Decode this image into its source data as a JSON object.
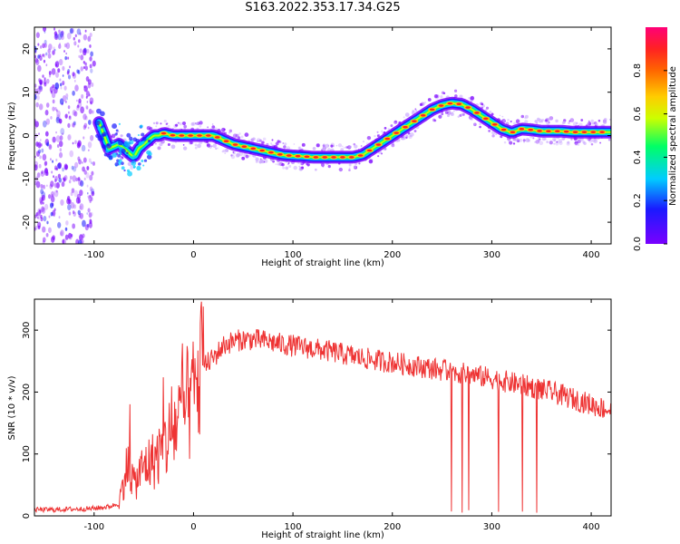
{
  "title": "S163.2022.353.17.34.G25",
  "colors": {
    "snr_line": "#ee3333",
    "background": "#ffffff",
    "axis": "#000000",
    "colormap": [
      "#7a00ff",
      "#1a1aff",
      "#00ccff",
      "#00ff66",
      "#ccff00",
      "#ffcc00",
      "#ff6600",
      "#ff2222",
      "#ff0077"
    ]
  },
  "chart_data": [
    {
      "type": "heatmap",
      "title": "",
      "xlabel": "Height of straight line (km)",
      "ylabel": "Frequency (Hz)",
      "xlim": [
        -160,
        420
      ],
      "ylim": [
        -25,
        25
      ],
      "xticks": [
        -100,
        0,
        100,
        200,
        300,
        400
      ],
      "yticks": [
        -20,
        -10,
        0,
        10,
        20
      ],
      "xtick_labels": [
        "-100",
        "0",
        "100",
        "200",
        "300",
        "400"
      ],
      "ytick_labels": [
        "-20",
        "-10",
        "0",
        "10",
        "20"
      ],
      "noise_region_x": [
        -160,
        -100
      ],
      "ridge": {
        "x": [
          -95,
          -90,
          -85,
          -80,
          -75,
          -70,
          -65,
          -60,
          -55,
          -50,
          -45,
          -40,
          -35,
          -30,
          -20,
          -10,
          0,
          10,
          20,
          30,
          40,
          50,
          60,
          70,
          80,
          90,
          100,
          110,
          120,
          130,
          140,
          150,
          160,
          170,
          180,
          190,
          200,
          210,
          220,
          230,
          240,
          250,
          260,
          270,
          280,
          290,
          300,
          310,
          320,
          330,
          340,
          350,
          360,
          370,
          380,
          390,
          400,
          410,
          420
        ],
        "y": [
          3,
          0,
          -3,
          -2.5,
          -2,
          -3,
          -4,
          -5,
          -3,
          -2,
          -1,
          0,
          0,
          0.5,
          0,
          0,
          0,
          0,
          0,
          -1,
          -2,
          -2.5,
          -3,
          -3.5,
          -4,
          -4.5,
          -4.7,
          -4.8,
          -5,
          -5,
          -5,
          -5,
          -5,
          -4.5,
          -3,
          -1.5,
          0,
          1.5,
          3,
          4.5,
          6,
          7,
          7.5,
          7.2,
          6,
          4.5,
          3,
          1.5,
          0.7,
          1.5,
          1.3,
          1,
          1,
          1,
          0.8,
          0.8,
          0.8,
          0.8,
          0.8
        ]
      },
      "colorbar": {
        "label": "Normalized spectral amplitude",
        "range": [
          0,
          1
        ],
        "ticks": [
          0.0,
          0.2,
          0.4,
          0.6,
          0.8
        ],
        "tick_labels": [
          "0.0",
          "0.2",
          "0.4",
          "0.6",
          "0.8"
        ]
      }
    },
    {
      "type": "line",
      "title": "",
      "xlabel": "Height of straight line (km)",
      "ylabel": "SNR (10 * v/v)",
      "xlim": [
        -160,
        420
      ],
      "ylim": [
        0,
        350
      ],
      "xticks": [
        -100,
        0,
        100,
        200,
        300,
        400
      ],
      "yticks": [
        0,
        100,
        200,
        300
      ],
      "xtick_labels": [
        "-100",
        "0",
        "100",
        "200",
        "300",
        "400"
      ],
      "ytick_labels": [
        "0",
        "100",
        "200",
        "300"
      ],
      "series": [
        {
          "x": [
            -160,
            -140,
            -120,
            -100,
            -85,
            -75,
            -70,
            -65,
            -60,
            -50,
            -40,
            -30,
            -20,
            -10,
            0,
            5,
            10,
            20,
            30,
            40,
            50,
            60,
            70,
            80,
            90,
            100,
            120,
            140,
            160,
            180,
            200,
            220,
            240,
            260,
            280,
            300,
            320,
            340,
            360,
            380,
            400,
            420
          ],
          "values": [
            10,
            10,
            11,
            12,
            15,
            20,
            60,
            90,
            50,
            80,
            90,
            110,
            140,
            170,
            190,
            220,
            240,
            255,
            275,
            282,
            285,
            285,
            283,
            280,
            277,
            275,
            270,
            265,
            258,
            252,
            248,
            243,
            238,
            233,
            228,
            222,
            215,
            208,
            200,
            190,
            180,
            170
          ]
        }
      ],
      "dropout_x_range": [
        255,
        350
      ]
    }
  ]
}
